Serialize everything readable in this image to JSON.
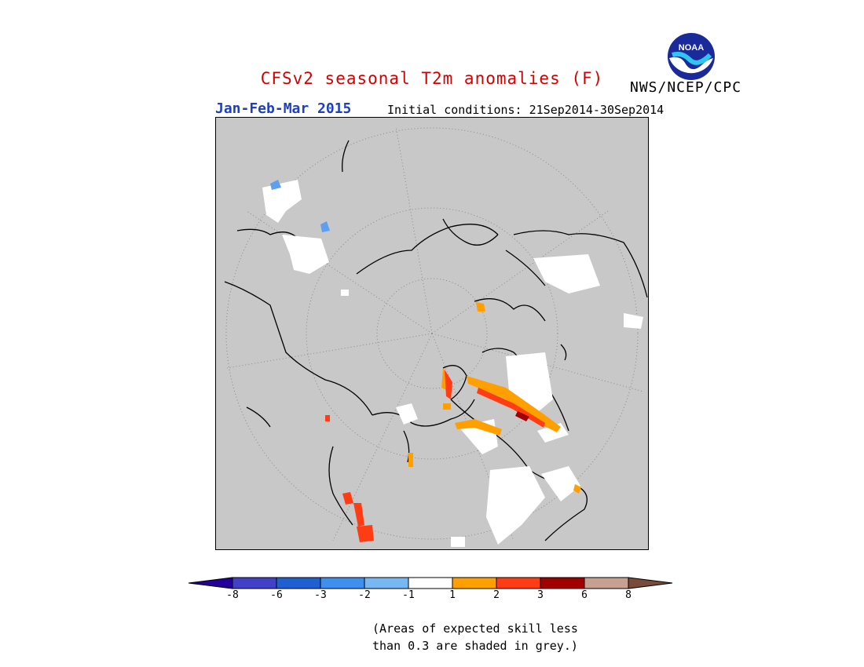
{
  "header": {
    "title": "CFSv2 seasonal T2m anomalies (F)",
    "season": "Jan-Feb-Mar 2015",
    "initial_conditions": "Initial conditions: 21Sep2014-30Sep2014",
    "agency": "NWS/NCEP/CPC",
    "logo_text": "NOAA"
  },
  "colors": {
    "title": "#d40000",
    "season": "#1f3fbf",
    "map_background": "#c8c8c8"
  },
  "colorbar": {
    "bins": [
      {
        "color": "#220099"
      },
      {
        "color": "#4040c8"
      },
      {
        "color": "#1f5fd0"
      },
      {
        "color": "#3f8ff0"
      },
      {
        "color": "#77b7f2"
      },
      {
        "color": "#ffffff"
      },
      {
        "color": "#ffa000"
      },
      {
        "color": "#ff3c14"
      },
      {
        "color": "#a00000"
      },
      {
        "color": "#c8a090"
      },
      {
        "color": "#7a4a3a"
      }
    ],
    "tick_labels": [
      "-8",
      "-6",
      "-3",
      "-2",
      "-1",
      "1",
      "2",
      "3",
      "6",
      "8"
    ]
  },
  "footnote": {
    "line1": "(Areas of expected skill less",
    "line2": "than 0.3 are shaded in grey.)"
  }
}
